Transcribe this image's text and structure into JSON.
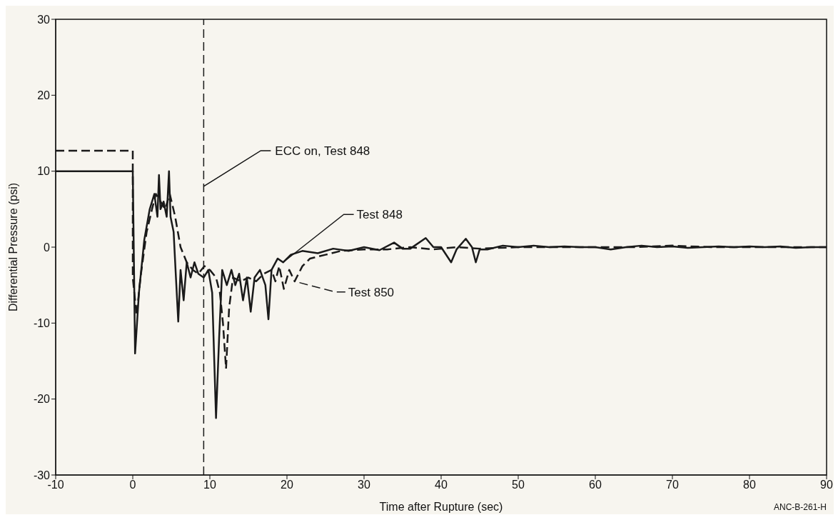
{
  "chart_data": {
    "type": "line",
    "xlabel": "Time after Rupture (sec)",
    "ylabel": "Differential Pressure (psi)",
    "xlim": [
      -10,
      90
    ],
    "ylim": [
      -30,
      30
    ],
    "xticks": [
      -10,
      0,
      10,
      20,
      30,
      40,
      50,
      60,
      70,
      80,
      90
    ],
    "yticks": [
      -30,
      -20,
      -10,
      0,
      10,
      20,
      30
    ],
    "marker": "none",
    "series": [
      {
        "name": "Test 848",
        "color": "#1a1a1a",
        "line_style": "solid",
        "x": [
          -10,
          0,
          0.3,
          0.8,
          1.5,
          2.2,
          2.8,
          3.2,
          3.4,
          3.6,
          4.0,
          4.4,
          4.7,
          4.9,
          5.3,
          5.6,
          5.9,
          6.2,
          6.6,
          7.0,
          7.5,
          8.0,
          8.5,
          9.2,
          9.8,
          10.3,
          10.8,
          11.2,
          11.6,
          12.2,
          12.8,
          13.3,
          13.8,
          14.3,
          14.8,
          15.3,
          15.8,
          16.5,
          17.2,
          17.6,
          18.0,
          18.8,
          19.5,
          20.5,
          22,
          24,
          26,
          28,
          30,
          32,
          33.9,
          35,
          36,
          38,
          39,
          40,
          41.3,
          42,
          43.2,
          44,
          44.5,
          45,
          46,
          48,
          50,
          52,
          54,
          56,
          58,
          60,
          62,
          64,
          66,
          68,
          70,
          72,
          74,
          76,
          78,
          80,
          82,
          84,
          86,
          88,
          90
        ],
        "values": [
          10,
          10,
          -14,
          -6,
          1,
          5,
          7,
          4,
          9.5,
          5,
          6,
          4,
          10,
          4,
          2,
          -4,
          -9.8,
          -3,
          -7,
          -2,
          -4,
          -2,
          -3.5,
          -4,
          -3,
          -6,
          -22.5,
          -12,
          -3,
          -5,
          -3,
          -5,
          -3.5,
          -7,
          -4,
          -8.5,
          -4,
          -3,
          -5,
          -9.5,
          -3,
          -1.5,
          -2,
          -1,
          -0.5,
          -0.8,
          -0.2,
          -0.5,
          0,
          -0.4,
          0.6,
          -0.2,
          -0.2,
          1.2,
          0,
          0,
          -2,
          -0.3,
          1.1,
          0,
          -2,
          -0.3,
          -0.3,
          0.2,
          0,
          0.2,
          0,
          0.1,
          0,
          0,
          -0.3,
          0,
          0.2,
          0,
          0.1,
          -0.1,
          0,
          0.1,
          0,
          0.1,
          0,
          0.1,
          -0.1,
          0,
          0
        ]
      },
      {
        "name": "Test 850",
        "color": "#1a1a1a",
        "line_style": "dashed",
        "x": [
          -10,
          0,
          0,
          0.5,
          1,
          1.8,
          2.5,
          3,
          3.6,
          4.2,
          4.8,
          5.5,
          6.2,
          7,
          7.8,
          8.5,
          9.3,
          10,
          10.8,
          11.3,
          11.7,
          12.1,
          12.5,
          13,
          14,
          15,
          16,
          17,
          18,
          18.5,
          19,
          19.6,
          20.3,
          21,
          22,
          23,
          25,
          27,
          30,
          33,
          36,
          39,
          42,
          45,
          50,
          55,
          60,
          65,
          70,
          75,
          80,
          85,
          90
        ],
        "values": [
          12.7,
          12.7,
          -4,
          -9,
          -4,
          2,
          5,
          7,
          6,
          5,
          7,
          4,
          0,
          -2,
          -3,
          -3.5,
          -2.5,
          -3,
          -4,
          -6,
          -10,
          -16,
          -8,
          -4,
          -4.5,
          -4,
          -4.5,
          -3.5,
          -3,
          -4.5,
          -2.5,
          -5.5,
          -3,
          -4.5,
          -2.5,
          -1.5,
          -1,
          -0.5,
          -0.3,
          -0.3,
          0,
          -0.3,
          0,
          -0.2,
          0,
          0,
          0,
          0,
          0.2,
          0,
          0,
          0,
          0
        ]
      }
    ],
    "ref_lines": [
      {
        "axis": "x",
        "value": 9.2,
        "label": "ECC on, Test 848",
        "line_style": "dashed",
        "color": "#1a1a1a"
      }
    ],
    "annotations": [
      "ANC-B-261-H"
    ]
  }
}
